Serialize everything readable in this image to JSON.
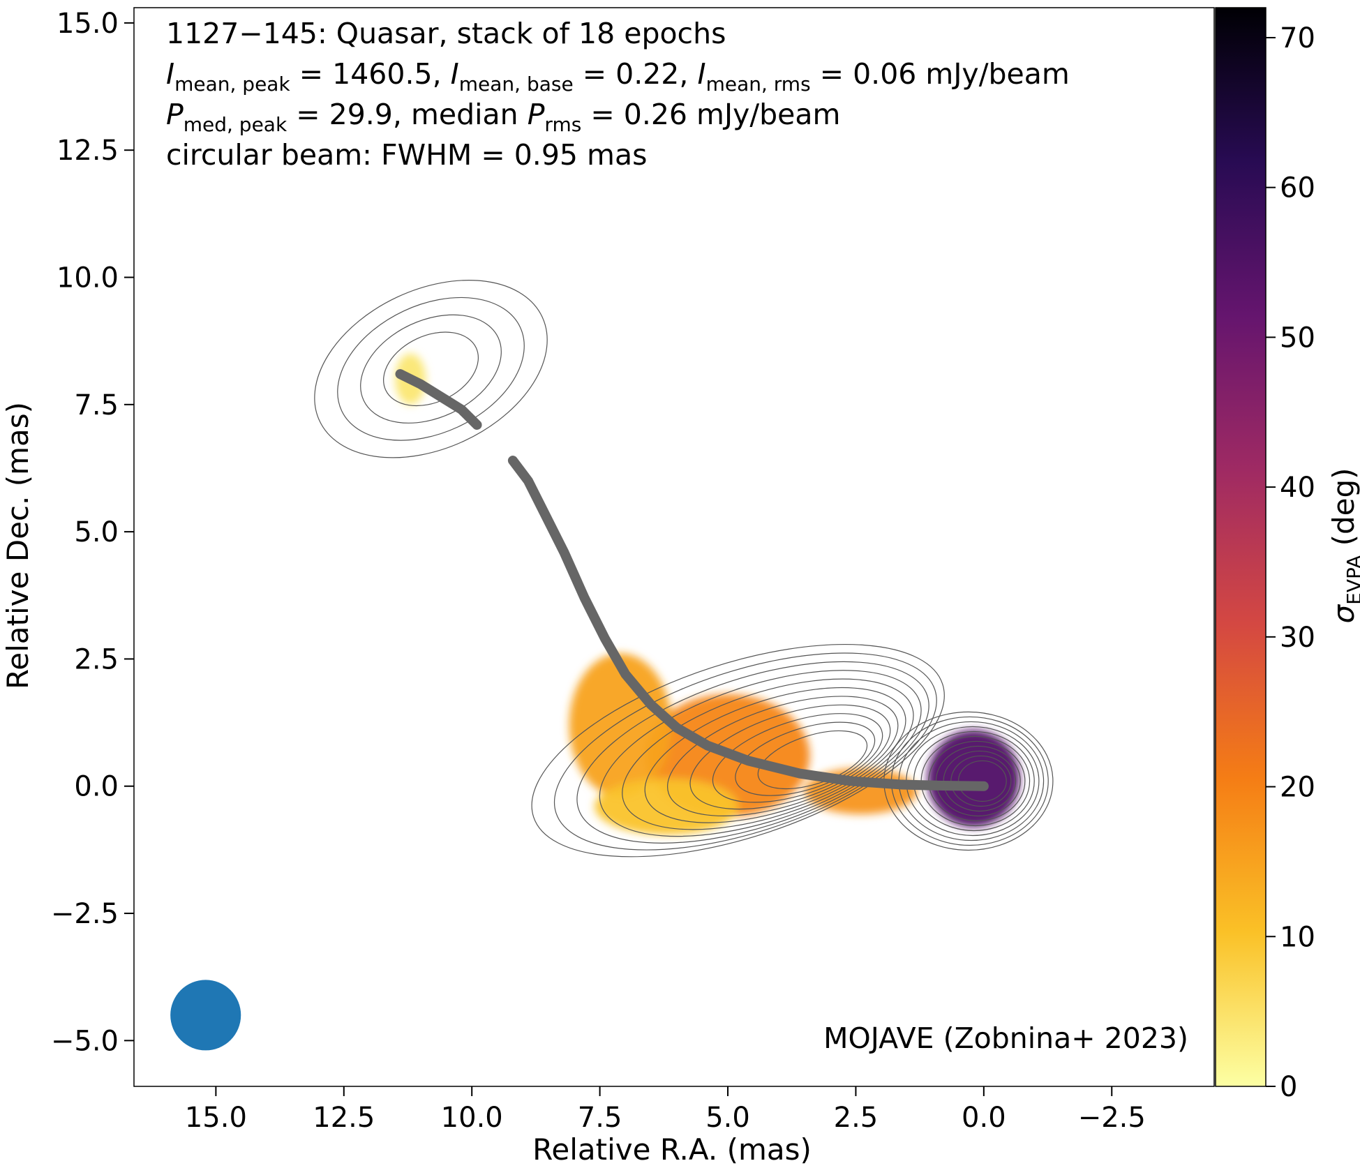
{
  "chart_data": {
    "type": "heatmap",
    "annotations": {
      "line1": "1127−145: Quasar, stack of 18 epochs",
      "line2_parts": [
        "I",
        "mean, peak",
        " = 1460.5, ",
        "I",
        "mean, base",
        " = 0.22, ",
        "I",
        "mean, rms",
        " = 0.06 mJy/beam"
      ],
      "line3_parts": [
        "P",
        "med, peak",
        " = 29.9, median ",
        "P",
        "rms",
        " = 0.26 mJy/beam"
      ],
      "line4": "circular beam: FWHM = 0.95 mas",
      "credit": "MOJAVE (Zobnina+ 2023)"
    },
    "xlabel": "Relative R.A. (mas)",
    "ylabel": "Relative Dec. (mas)",
    "xlim": [
      16.6,
      -4.5
    ],
    "ylim": [
      -5.9,
      15.3
    ],
    "xticks": [
      15.0,
      12.5,
      10.0,
      7.5,
      5.0,
      2.5,
      0.0,
      -2.5
    ],
    "xtick_labels": [
      "15.0",
      "12.5",
      "10.0",
      "7.5",
      "5.0",
      "2.5",
      "0.0",
      "−2.5"
    ],
    "yticks": [
      -5.0,
      -2.5,
      0.0,
      2.5,
      5.0,
      7.5,
      10.0,
      12.5,
      15.0
    ],
    "ytick_labels": [
      "−5.0",
      "−2.5",
      "0.0",
      "2.5",
      "5.0",
      "7.5",
      "10.0",
      "12.5",
      "15.0"
    ],
    "colorbar": {
      "label_main": "σ",
      "label_sub": "EVPA",
      "label_unit": " (deg)",
      "range": [
        0,
        72
      ],
      "ticks": [
        0,
        10,
        20,
        30,
        40,
        50,
        60,
        70
      ],
      "colormap": "inferno_r",
      "stops": [
        "#fcffa4",
        "#fac127",
        "#f57d15",
        "#d44842",
        "#9f2a63",
        "#65156e",
        "#280b53",
        "#000004"
      ]
    },
    "beam": {
      "ra": 15.2,
      "dec": -4.5,
      "fwhm_mas": 0.95,
      "color": "#1f77b4"
    },
    "ridgeline_color": "#666666",
    "ridgeline_segments": [
      [
        [
          11.4,
          8.1
        ],
        [
          11.0,
          7.9
        ],
        [
          10.6,
          7.65
        ],
        [
          10.2,
          7.4
        ],
        [
          9.9,
          7.1
        ]
      ],
      [
        [
          9.2,
          6.4
        ],
        [
          8.9,
          6.0
        ],
        [
          8.6,
          5.4
        ],
        [
          8.2,
          4.6
        ],
        [
          7.8,
          3.7
        ],
        [
          7.4,
          2.9
        ],
        [
          7.0,
          2.2
        ],
        [
          6.5,
          1.6
        ],
        [
          6.0,
          1.15
        ],
        [
          5.4,
          0.8
        ],
        [
          4.6,
          0.5
        ],
        [
          3.6,
          0.25
        ],
        [
          2.6,
          0.1
        ],
        [
          1.6,
          0.03
        ],
        [
          0.8,
          0.01
        ],
        [
          0.0,
          0.0
        ]
      ]
    ],
    "contour_color": "#555555",
    "contour_levels": 11,
    "epvpa_regions": [
      {
        "ra": 0.2,
        "dec": 0.15,
        "rx": 0.9,
        "ry": 0.95,
        "value": 55
      },
      {
        "ra": 2.4,
        "dec": -0.1,
        "rx": 1.1,
        "ry": 0.45,
        "value": 17
      },
      {
        "ra": 5.0,
        "dec": 0.6,
        "rx": 1.6,
        "ry": 1.2,
        "value": 19
      },
      {
        "ra": 7.1,
        "dec": 1.2,
        "rx": 1.0,
        "ry": 1.4,
        "value": 15
      },
      {
        "ra": 6.2,
        "dec": -0.4,
        "rx": 1.4,
        "ry": 0.55,
        "value": 10
      },
      {
        "ra": 11.2,
        "dec": 8.0,
        "rx": 0.3,
        "ry": 0.5,
        "value": 4
      }
    ]
  }
}
